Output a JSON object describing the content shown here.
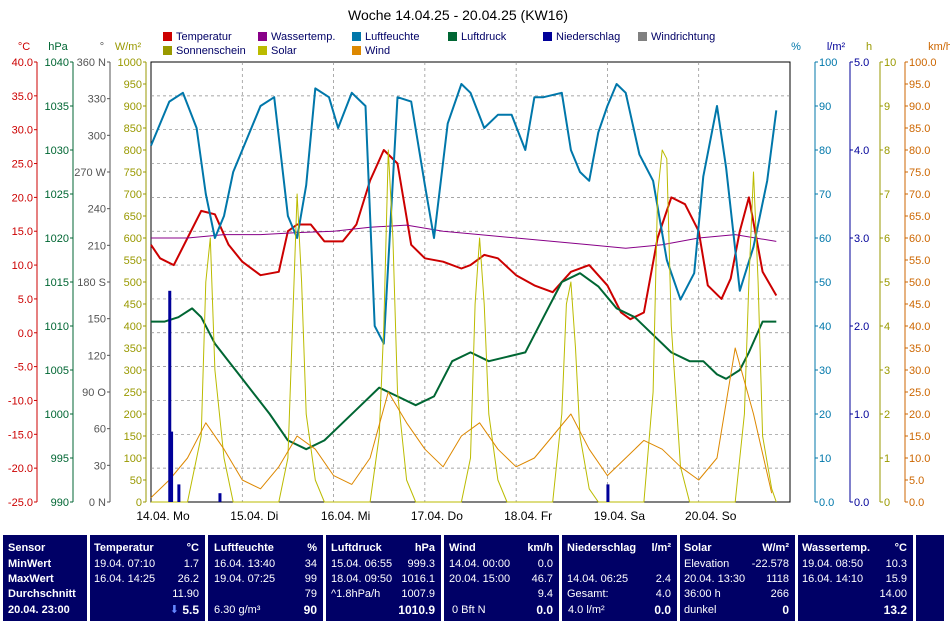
{
  "chart_data": {
    "type": "line",
    "title": "Woche 14.04.25 - 20.04.25 (KW16)",
    "x_labels": [
      "14.04. Mo",
      "15.04. Di",
      "16.04. Mi",
      "17.04. Do",
      "18.04. Fr",
      "19.04. Sa",
      "20.04. So"
    ],
    "grid": true,
    "axes": {
      "temp": {
        "unit": "°C",
        "ticks": [
          "40.0",
          "35.0",
          "30.0",
          "25.0",
          "20.0",
          "15.0",
          "10.0",
          "5.0",
          "0.0",
          "-5.0",
          "-10.0",
          "-15.0",
          "-20.0",
          "-25.0"
        ],
        "color": "#cc0000",
        "range": [
          -25,
          40
        ]
      },
      "pressure": {
        "unit": "hPa",
        "ticks": [
          "1040",
          "1035",
          "1030",
          "1025",
          "1020",
          "1015",
          "1010",
          "1005",
          "1000",
          "995",
          "990"
        ],
        "color": "#006633",
        "range": [
          990,
          1040
        ]
      },
      "direction": {
        "unit": "°",
        "ticks": [
          "360 N",
          "330",
          "300",
          "270 W",
          "240",
          "210",
          "180 S",
          "150",
          "120",
          "90 O",
          "60",
          "30",
          "0 N"
        ],
        "color": "#555555",
        "range": [
          0,
          360
        ]
      },
      "solar": {
        "unit": "W/m²",
        "ticks": [
          "1000",
          "950",
          "900",
          "850",
          "800",
          "750",
          "700",
          "650",
          "600",
          "550",
          "500",
          "450",
          "400",
          "350",
          "300",
          "250",
          "200",
          "150",
          "100",
          "50",
          "0"
        ],
        "color": "#999900",
        "range": [
          0,
          1000
        ]
      },
      "humidity": {
        "unit": "%",
        "ticks": [
          "100",
          "90",
          "80",
          "70",
          "60",
          "50",
          "40",
          "30",
          "20",
          "10",
          "0.0"
        ],
        "color": "#0077aa",
        "range": [
          0,
          100
        ]
      },
      "precip": {
        "unit": "l/m²",
        "ticks": [
          "5.0",
          "4.0",
          "3.0",
          "2.0",
          "1.0",
          "0.0"
        ],
        "color": "#000099",
        "range": [
          0,
          5
        ]
      },
      "sunshine": {
        "unit": "h",
        "ticks": [
          "10",
          "9",
          "8",
          "7",
          "6",
          "5",
          "4",
          "3",
          "2",
          "1",
          "0"
        ],
        "color": "#999900",
        "range": [
          0,
          10
        ]
      },
      "wind": {
        "unit": "km/h",
        "ticks": [
          "100.0",
          "95.0",
          "90.0",
          "85.0",
          "80.0",
          "75.0",
          "70.0",
          "65.0",
          "60.0",
          "55.0",
          "50.0",
          "45.0",
          "40.0",
          "35.0",
          "30.0",
          "25.0",
          "20.0",
          "15.0",
          "10.0",
          "5.0",
          "0.0"
        ],
        "color": "#cc6600",
        "range": [
          0,
          100
        ]
      }
    },
    "legend": [
      {
        "label": "Temperatur",
        "color": "#cc0000"
      },
      {
        "label": "Wassertemp.",
        "color": "#880088"
      },
      {
        "label": "Luftfeuchte",
        "color": "#0077aa"
      },
      {
        "label": "Luftdruck",
        "color": "#006633"
      },
      {
        "label": "Niederschlag",
        "color": "#000099"
      },
      {
        "label": "Windrichtung",
        "color": "#808080"
      },
      {
        "label": "Sonnenschein",
        "color": "#999900"
      },
      {
        "label": "Solar",
        "color": "#bbbb00"
      },
      {
        "label": "Wind",
        "color": "#dd8800"
      }
    ],
    "series": [
      {
        "name": "Temperatur",
        "axis": "temp",
        "color": "#cc0000",
        "x": [
          0,
          0.1,
          0.25,
          0.4,
          0.55,
          0.7,
          0.85,
          1.0,
          1.2,
          1.4,
          1.5,
          1.6,
          1.75,
          1.9,
          2.1,
          2.25,
          2.4,
          2.55,
          2.7,
          2.85,
          3.0,
          3.2,
          3.4,
          3.5,
          3.65,
          3.8,
          4.0,
          4.2,
          4.4,
          4.6,
          4.8,
          5.0,
          5.15,
          5.25,
          5.4,
          5.55,
          5.7,
          5.85,
          6.0,
          6.1,
          6.25,
          6.35,
          6.45,
          6.55,
          6.7,
          6.85
        ],
        "y": [
          13,
          11,
          10,
          14,
          18,
          17.5,
          13,
          10.5,
          8.5,
          9,
          15,
          16,
          16,
          13.5,
          13.5,
          16,
          22.5,
          27,
          25,
          13,
          11,
          10.5,
          9.5,
          10,
          11.5,
          11,
          8.5,
          7,
          6,
          9,
          10,
          7,
          3,
          2,
          3,
          14,
          20,
          19,
          15,
          7,
          5,
          8,
          15,
          20,
          9,
          5.5
        ]
      },
      {
        "name": "Wassertemp.",
        "axis": "temp",
        "color": "#880088",
        "x": [
          0,
          0.4,
          0.8,
          1.2,
          1.6,
          2.0,
          2.4,
          2.8,
          3.2,
          3.6,
          4.0,
          4.4,
          4.8,
          5.2,
          5.6,
          6.0,
          6.4,
          6.85
        ],
        "y": [
          14,
          14,
          14.5,
          14.5,
          14.8,
          15,
          15.6,
          15.9,
          15,
          14.5,
          14,
          13.5,
          13,
          12.5,
          13,
          14,
          14.5,
          13.5
        ]
      },
      {
        "name": "Luftfeuchte",
        "axis": "humidity",
        "color": "#0077aa",
        "x": [
          0,
          0.2,
          0.35,
          0.5,
          0.6,
          0.7,
          0.8,
          0.9,
          1.0,
          1.2,
          1.35,
          1.5,
          1.6,
          1.7,
          1.8,
          1.95,
          2.05,
          2.2,
          2.35,
          2.45,
          2.55,
          2.7,
          2.85,
          3.0,
          3.1,
          3.25,
          3.4,
          3.5,
          3.65,
          3.8,
          3.95,
          4.1,
          4.2,
          4.3,
          4.5,
          4.6,
          4.7,
          4.8,
          4.9,
          5.0,
          5.1,
          5.2,
          5.35,
          5.5,
          5.65,
          5.8,
          5.95,
          6.05,
          6.2,
          6.3,
          6.45,
          6.6,
          6.75,
          6.85
        ],
        "y": [
          81,
          91,
          93,
          85,
          70,
          60,
          65,
          75,
          80,
          90,
          92,
          65,
          60,
          72,
          94,
          92,
          85,
          93,
          90,
          40,
          36,
          92,
          91,
          72,
          60,
          86,
          95,
          93,
          85,
          88,
          88,
          80,
          92,
          92,
          93,
          80,
          75,
          73,
          84,
          90,
          95,
          93,
          79,
          73,
          55,
          46,
          52,
          74,
          90,
          76,
          48,
          58,
          73,
          89
        ]
      },
      {
        "name": "Luftdruck",
        "axis": "pressure",
        "color": "#006633",
        "x": [
          0,
          0.15,
          0.3,
          0.45,
          0.55,
          0.7,
          0.85,
          1.0,
          1.15,
          1.3,
          1.5,
          1.7,
          1.9,
          2.1,
          2.3,
          2.5,
          2.7,
          2.9,
          3.1,
          3.3,
          3.5,
          3.7,
          3.9,
          4.1,
          4.3,
          4.5,
          4.7,
          4.9,
          5.1,
          5.3,
          5.5,
          5.7,
          5.9,
          6.05,
          6.2,
          6.3,
          6.45,
          6.55,
          6.7,
          6.85
        ],
        "y": [
          1010.5,
          1010.5,
          1011,
          1012,
          1011,
          1008,
          1006,
          1004,
          1002,
          1000,
          997,
          996,
          997,
          999,
          1001,
          1003,
          1002,
          1001,
          1002,
          1006,
          1007,
          1006,
          1006.5,
          1007,
          1011,
          1015,
          1016,
          1014.5,
          1012,
          1011,
          1009,
          1007,
          1006,
          1006,
          1004.5,
          1004,
          1005,
          1007,
          1010.5,
          1010.5
        ]
      },
      {
        "name": "Solar",
        "axis": "solar",
        "color": "#bbbb00",
        "x": [
          0,
          0.4,
          0.55,
          0.6,
          0.65,
          0.7,
          0.8,
          0.9,
          1.4,
          1.5,
          1.55,
          1.6,
          1.65,
          1.7,
          1.8,
          1.9,
          2.4,
          2.5,
          2.55,
          2.6,
          2.65,
          2.7,
          2.8,
          2.9,
          3.4,
          3.5,
          3.55,
          3.6,
          3.65,
          3.7,
          3.8,
          3.9,
          4.4,
          4.5,
          4.55,
          4.6,
          4.65,
          4.7,
          4.8,
          4.9,
          5.4,
          5.5,
          5.55,
          5.6,
          5.65,
          5.7,
          5.8,
          5.9,
          6.4,
          6.5,
          6.55,
          6.6,
          6.65,
          6.7,
          6.8,
          6.85
        ],
        "y": [
          0,
          0,
          150,
          500,
          600,
          300,
          100,
          0,
          0,
          100,
          400,
          700,
          500,
          200,
          50,
          0,
          0,
          150,
          400,
          800,
          600,
          250,
          50,
          0,
          0,
          100,
          450,
          600,
          450,
          200,
          50,
          0,
          0,
          200,
          450,
          500,
          350,
          150,
          30,
          0,
          0,
          250,
          700,
          800,
          780,
          400,
          80,
          0,
          0,
          200,
          500,
          750,
          500,
          150,
          30,
          0
        ]
      },
      {
        "name": "Wind",
        "axis": "wind",
        "color": "#dd8800",
        "x": [
          0,
          0.2,
          0.4,
          0.6,
          0.8,
          1.0,
          1.2,
          1.4,
          1.6,
          1.8,
          2.0,
          2.2,
          2.4,
          2.6,
          2.8,
          3.0,
          3.2,
          3.4,
          3.6,
          3.8,
          4.0,
          4.2,
          4.4,
          4.6,
          4.8,
          5.0,
          5.2,
          5.4,
          5.6,
          5.8,
          6.0,
          6.2,
          6.4,
          6.6,
          6.8
        ],
        "y": [
          1,
          5,
          10,
          18,
          12,
          5,
          3,
          8,
          15,
          12,
          6,
          4,
          10,
          25,
          18,
          12,
          8,
          15,
          18,
          12,
          8,
          10,
          15,
          20,
          12,
          6,
          10,
          14,
          12,
          8,
          5,
          10,
          35,
          20,
          2
        ]
      }
    ],
    "precip_bars": {
      "axis": "precip",
      "color": "#000099",
      "x": [
        0.2,
        0.22,
        0.3,
        0.75,
        5.0
      ],
      "values": [
        2.4,
        0.8,
        0.2,
        0.1,
        0.2
      ]
    }
  },
  "panel": {
    "sensor": {
      "header": "Sensor",
      "min": "MinWert",
      "max": "MaxWert",
      "avg": "Durchschnitt",
      "now": "20.04. 23:00"
    },
    "temp": {
      "header": "Temperatur",
      "unit": "°C",
      "min_time": "19.04. 07:10",
      "min": "1.7",
      "max_time": "16.04. 14:25",
      "max": "26.2",
      "avg": "11.90",
      "now_arrow": "⬇",
      "now": "5.5"
    },
    "humidity": {
      "header": "Luftfeuchte",
      "unit": "%",
      "min_time": "16.04. 13:40",
      "min": "34",
      "max_time": "19.04. 07:25",
      "max": "99",
      "avg": "79",
      "now_abs": "6.30 g/m³",
      "now": "90"
    },
    "pressure": {
      "header": "Luftdruck",
      "unit": "hPa",
      "min_time": "15.04. 06:55",
      "min": "999.3",
      "max_time": "18.04. 09:50",
      "max": "1016.1",
      "trend": "^1.8hPa/h",
      "avg": "1007.9",
      "now": "1010.9"
    },
    "wind": {
      "header": "Wind",
      "unit": "km/h",
      "min_time": "14.04. 00:00",
      "min": "0.0",
      "max_time": "20.04. 15:00",
      "max": "46.7",
      "avg": "9.4",
      "now_bft": "0 Bft N",
      "now": "0.0"
    },
    "precip": {
      "header": "Niederschlag",
      "unit": "l/m²",
      "max_time": "14.04. 06:25",
      "max": "2.4",
      "total_label": "Gesamt:",
      "total": "4.0",
      "now_label": "4.0 l/m²",
      "now": "0.0"
    },
    "solar": {
      "header": "Solar",
      "unit": "W/m²",
      "elev_label": "Elevation",
      "elev": "-22.578",
      "max_time": "20.04. 13:30",
      "max": "1118",
      "dur_label": "36:00 h",
      "dur": "266",
      "state": "dunkel",
      "now": "0"
    },
    "water": {
      "header": "Wassertemp.",
      "unit": "°C",
      "min_time": "19.04. 08:50",
      "min": "10.3",
      "max_time": "16.04. 14:10",
      "max": "15.9",
      "avg": "14.00",
      "now": "13.2"
    }
  }
}
